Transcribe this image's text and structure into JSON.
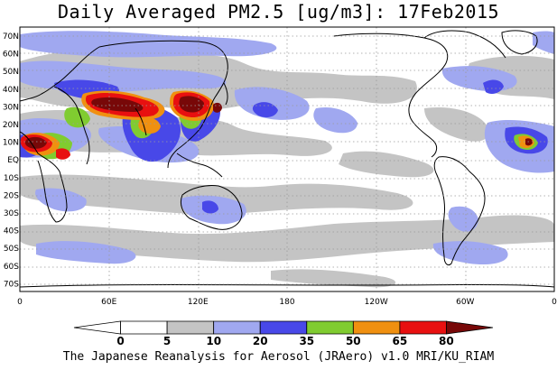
{
  "title": "Daily Averaged PM2.5 [ug/m3]: 17Feb2015",
  "footer": "The Japanese Reanalysis for Aerosol (JRAero) v1.0 MRI/KU_RIAM",
  "lat_labels": [
    "70N",
    "60N",
    "50N",
    "40N",
    "30N",
    "20N",
    "10N",
    "EQ",
    "10S",
    "20S",
    "30S",
    "40S",
    "50S",
    "60S",
    "70S"
  ],
  "lon_labels": [
    "0",
    "60E",
    "120E",
    "180",
    "120W",
    "60W",
    "0"
  ],
  "colorbar": {
    "ticks": [
      "0",
      "5",
      "10",
      "20",
      "35",
      "50",
      "65",
      "80"
    ],
    "colors": [
      "#ffffff",
      "#ffffff",
      "#c4c4c4",
      "#a0a8f0",
      "#4848e8",
      "#80cc30",
      "#f09010",
      "#e81010",
      "#780808"
    ]
  },
  "colors": {
    "grey": "#c4c4c4",
    "light_blue": "#a0a8f0",
    "blue": "#4848e8",
    "green": "#80cc30",
    "orange": "#f09010",
    "red": "#e81010",
    "dark_red": "#780808"
  }
}
